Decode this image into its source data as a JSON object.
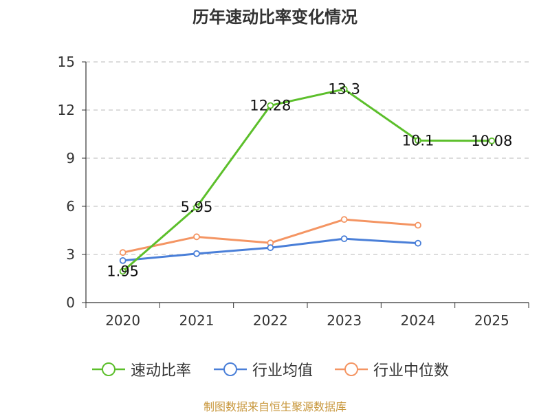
{
  "title": "历年速动比率变化情况",
  "source": "制图数据来自恒生聚源数据库",
  "chart_data": {
    "type": "line",
    "title": "历年速动比率变化情况",
    "categories": [
      "2020",
      "2021",
      "2022",
      "2023",
      "2024",
      "2025"
    ],
    "ylim": [
      0,
      15
    ],
    "yticks": [
      "0",
      "3",
      "6",
      "9",
      "12",
      "15"
    ],
    "grid": true,
    "legend_position": "bottom",
    "series": [
      {
        "name": "速动比率",
        "color": "#5cbf2b",
        "values": [
          1.95,
          5.95,
          12.28,
          13.3,
          10.1,
          10.08
        ],
        "labels": [
          "1.95",
          "5.95",
          "12.28",
          "13.3",
          "10.1",
          "10.08"
        ]
      },
      {
        "name": "行业均值",
        "color": "#4a7fd8",
        "values": [
          2.62,
          3.05,
          3.42,
          3.98,
          3.7,
          null
        ]
      },
      {
        "name": "行业中位数",
        "color": "#f49563",
        "values": [
          3.12,
          4.1,
          3.72,
          5.18,
          4.82,
          null
        ]
      }
    ]
  }
}
